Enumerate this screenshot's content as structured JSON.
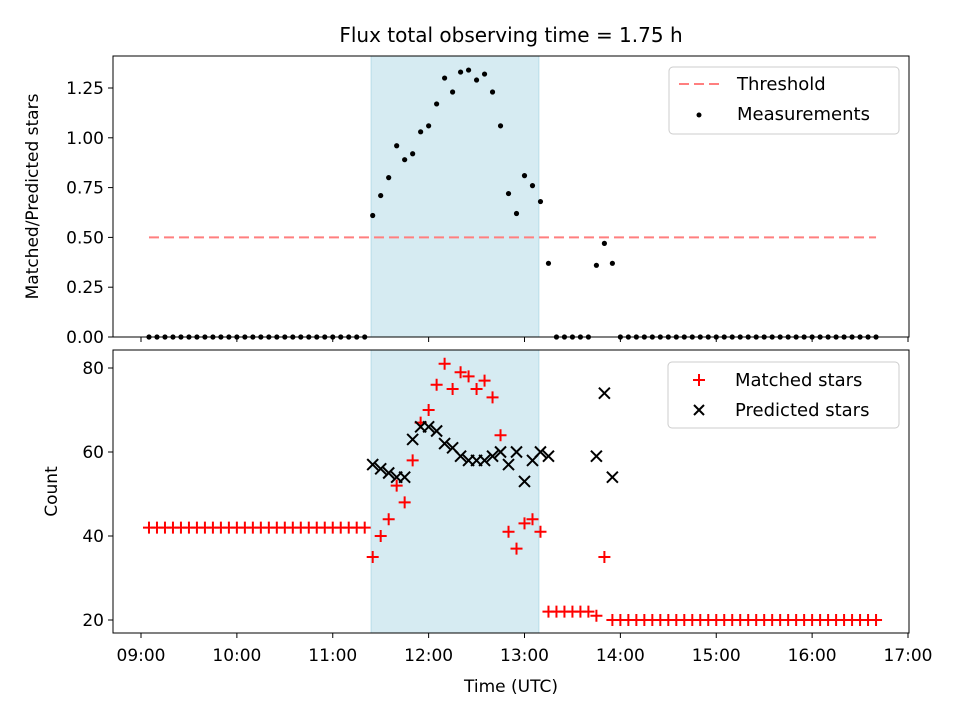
{
  "chart_data": [
    {
      "type": "scatter",
      "title": "Flux total observing time = 1.75 h",
      "ylabel": "Matched/Predicted stars",
      "xlim": [
        "09:00",
        "17:00"
      ],
      "ylim": [
        0,
        1.4
      ],
      "yticks": [
        "0.00",
        "0.25",
        "0.50",
        "0.75",
        "1.00",
        "1.25"
      ],
      "legend_position": "upper right",
      "shaded_interval": {
        "start": "11:24",
        "end": "13:09",
        "color": "#add8e6"
      },
      "threshold": {
        "name": "Threshold",
        "value": 0.5,
        "x_start": "09:05",
        "x_end": "16:40",
        "color": "#ff7f7f",
        "style": "dashed"
      },
      "series": [
        {
          "name": "Measurements",
          "color": "#000000",
          "marker": "dot",
          "points": [
            [
              "09:05",
              0
            ],
            [
              "09:10",
              0
            ],
            [
              "09:15",
              0
            ],
            [
              "09:20",
              0
            ],
            [
              "09:25",
              0
            ],
            [
              "09:30",
              0
            ],
            [
              "09:35",
              0
            ],
            [
              "09:40",
              0
            ],
            [
              "09:45",
              0
            ],
            [
              "09:50",
              0
            ],
            [
              "09:55",
              0
            ],
            [
              "10:00",
              0
            ],
            [
              "10:05",
              0
            ],
            [
              "10:10",
              0
            ],
            [
              "10:15",
              0
            ],
            [
              "10:20",
              0
            ],
            [
              "10:25",
              0
            ],
            [
              "10:30",
              0
            ],
            [
              "10:35",
              0
            ],
            [
              "10:40",
              0
            ],
            [
              "10:45",
              0
            ],
            [
              "10:50",
              0
            ],
            [
              "10:55",
              0
            ],
            [
              "11:00",
              0
            ],
            [
              "11:05",
              0
            ],
            [
              "11:10",
              0
            ],
            [
              "11:15",
              0
            ],
            [
              "11:20",
              0
            ],
            [
              "11:25",
              0.61
            ],
            [
              "11:30",
              0.71
            ],
            [
              "11:35",
              0.8
            ],
            [
              "11:40",
              0.96
            ],
            [
              "11:45",
              0.89
            ],
            [
              "11:50",
              0.92
            ],
            [
              "11:55",
              1.03
            ],
            [
              "12:00",
              1.06
            ],
            [
              "12:05",
              1.17
            ],
            [
              "12:10",
              1.3
            ],
            [
              "12:15",
              1.23
            ],
            [
              "12:20",
              1.33
            ],
            [
              "12:25",
              1.34
            ],
            [
              "12:30",
              1.29
            ],
            [
              "12:35",
              1.32
            ],
            [
              "12:40",
              1.23
            ],
            [
              "12:45",
              1.06
            ],
            [
              "12:50",
              0.72
            ],
            [
              "12:55",
              0.62
            ],
            [
              "13:00",
              0.81
            ],
            [
              "13:05",
              0.76
            ],
            [
              "13:10",
              0.68
            ],
            [
              "13:15",
              0.37
            ],
            [
              "13:20",
              0
            ],
            [
              "13:25",
              0
            ],
            [
              "13:30",
              0
            ],
            [
              "13:35",
              0
            ],
            [
              "13:40",
              0
            ],
            [
              "13:45",
              0.36
            ],
            [
              "13:50",
              0.47
            ],
            [
              "13:55",
              0.37
            ],
            [
              "14:00",
              0
            ],
            [
              "14:05",
              0
            ],
            [
              "14:10",
              0
            ],
            [
              "14:15",
              0
            ],
            [
              "14:20",
              0
            ],
            [
              "14:25",
              0
            ],
            [
              "14:30",
              0
            ],
            [
              "14:35",
              0
            ],
            [
              "14:40",
              0
            ],
            [
              "14:45",
              0
            ],
            [
              "14:50",
              0
            ],
            [
              "14:55",
              0
            ],
            [
              "15:00",
              0
            ],
            [
              "15:05",
              0
            ],
            [
              "15:10",
              0
            ],
            [
              "15:15",
              0
            ],
            [
              "15:20",
              0
            ],
            [
              "15:25",
              0
            ],
            [
              "15:30",
              0
            ],
            [
              "15:35",
              0
            ],
            [
              "15:40",
              0
            ],
            [
              "15:45",
              0
            ],
            [
              "15:50",
              0
            ],
            [
              "15:55",
              0
            ],
            [
              "16:00",
              0
            ],
            [
              "16:05",
              0
            ],
            [
              "16:10",
              0
            ],
            [
              "16:15",
              0
            ],
            [
              "16:20",
              0
            ],
            [
              "16:25",
              0
            ],
            [
              "16:30",
              0
            ],
            [
              "16:35",
              0
            ],
            [
              "16:40",
              0
            ]
          ]
        }
      ]
    },
    {
      "type": "scatter",
      "xlabel": "Time (UTC)",
      "ylabel": "Count",
      "xlim": [
        "09:00",
        "17:00"
      ],
      "ylim": [
        18,
        83
      ],
      "xticks": [
        "09:00",
        "10:00",
        "11:00",
        "12:00",
        "13:00",
        "14:00",
        "15:00",
        "16:00",
        "17:00"
      ],
      "yticks": [
        "20",
        "40",
        "60",
        "80"
      ],
      "legend_position": "upper right",
      "shaded_interval": {
        "start": "11:24",
        "end": "13:09",
        "color": "#add8e6"
      },
      "series": [
        {
          "name": "Matched stars",
          "color": "#ff0000",
          "marker": "plus",
          "points": [
            [
              "09:05",
              42
            ],
            [
              "09:10",
              42
            ],
            [
              "09:15",
              42
            ],
            [
              "09:20",
              42
            ],
            [
              "09:25",
              42
            ],
            [
              "09:30",
              42
            ],
            [
              "09:35",
              42
            ],
            [
              "09:40",
              42
            ],
            [
              "09:45",
              42
            ],
            [
              "09:50",
              42
            ],
            [
              "09:55",
              42
            ],
            [
              "10:00",
              42
            ],
            [
              "10:05",
              42
            ],
            [
              "10:10",
              42
            ],
            [
              "10:15",
              42
            ],
            [
              "10:20",
              42
            ],
            [
              "10:25",
              42
            ],
            [
              "10:30",
              42
            ],
            [
              "10:35",
              42
            ],
            [
              "10:40",
              42
            ],
            [
              "10:45",
              42
            ],
            [
              "10:50",
              42
            ],
            [
              "10:55",
              42
            ],
            [
              "11:00",
              42
            ],
            [
              "11:05",
              42
            ],
            [
              "11:10",
              42
            ],
            [
              "11:15",
              42
            ],
            [
              "11:20",
              42
            ],
            [
              "11:25",
              35
            ],
            [
              "11:30",
              40
            ],
            [
              "11:35",
              44
            ],
            [
              "11:40",
              52
            ],
            [
              "11:45",
              48
            ],
            [
              "11:50",
              58
            ],
            [
              "11:55",
              67
            ],
            [
              "12:00",
              70
            ],
            [
              "12:05",
              76
            ],
            [
              "12:10",
              81
            ],
            [
              "12:15",
              75
            ],
            [
              "12:20",
              79
            ],
            [
              "12:25",
              78
            ],
            [
              "12:30",
              75
            ],
            [
              "12:35",
              77
            ],
            [
              "12:40",
              73
            ],
            [
              "12:45",
              64
            ],
            [
              "12:50",
              41
            ],
            [
              "12:55",
              37
            ],
            [
              "13:00",
              43
            ],
            [
              "13:05",
              44
            ],
            [
              "13:10",
              41
            ],
            [
              "13:15",
              22
            ],
            [
              "13:20",
              22
            ],
            [
              "13:25",
              22
            ],
            [
              "13:30",
              22
            ],
            [
              "13:35",
              22
            ],
            [
              "13:40",
              22
            ],
            [
              "13:45",
              21
            ],
            [
              "13:50",
              35
            ],
            [
              "13:55",
              20
            ],
            [
              "14:00",
              20
            ],
            [
              "14:05",
              20
            ],
            [
              "14:10",
              20
            ],
            [
              "14:15",
              20
            ],
            [
              "14:20",
              20
            ],
            [
              "14:25",
              20
            ],
            [
              "14:30",
              20
            ],
            [
              "14:35",
              20
            ],
            [
              "14:40",
              20
            ],
            [
              "14:45",
              20
            ],
            [
              "14:50",
              20
            ],
            [
              "14:55",
              20
            ],
            [
              "15:00",
              20
            ],
            [
              "15:05",
              20
            ],
            [
              "15:10",
              20
            ],
            [
              "15:15",
              20
            ],
            [
              "15:20",
              20
            ],
            [
              "15:25",
              20
            ],
            [
              "15:30",
              20
            ],
            [
              "15:35",
              20
            ],
            [
              "15:40",
              20
            ],
            [
              "15:45",
              20
            ],
            [
              "15:50",
              20
            ],
            [
              "15:55",
              20
            ],
            [
              "16:00",
              20
            ],
            [
              "16:05",
              20
            ],
            [
              "16:10",
              20
            ],
            [
              "16:15",
              20
            ],
            [
              "16:20",
              20
            ],
            [
              "16:25",
              20
            ],
            [
              "16:30",
              20
            ],
            [
              "16:35",
              20
            ],
            [
              "16:40",
              20
            ]
          ]
        },
        {
          "name": "Predicted stars",
          "color": "#000000",
          "marker": "x",
          "points": [
            [
              "11:25",
              57
            ],
            [
              "11:30",
              56
            ],
            [
              "11:35",
              55
            ],
            [
              "11:40",
              54
            ],
            [
              "11:45",
              54
            ],
            [
              "11:50",
              63
            ],
            [
              "11:55",
              66
            ],
            [
              "12:00",
              66
            ],
            [
              "12:05",
              65
            ],
            [
              "12:10",
              62
            ],
            [
              "12:15",
              61
            ],
            [
              "12:20",
              59
            ],
            [
              "12:25",
              58
            ],
            [
              "12:30",
              58
            ],
            [
              "12:35",
              58
            ],
            [
              "12:40",
              59
            ],
            [
              "12:45",
              60
            ],
            [
              "12:50",
              57
            ],
            [
              "12:55",
              60
            ],
            [
              "13:00",
              53
            ],
            [
              "13:05",
              58
            ],
            [
              "13:10",
              60
            ],
            [
              "13:15",
              59
            ],
            [
              "13:45",
              59
            ],
            [
              "13:50",
              74
            ],
            [
              "13:55",
              54
            ]
          ]
        }
      ]
    }
  ]
}
